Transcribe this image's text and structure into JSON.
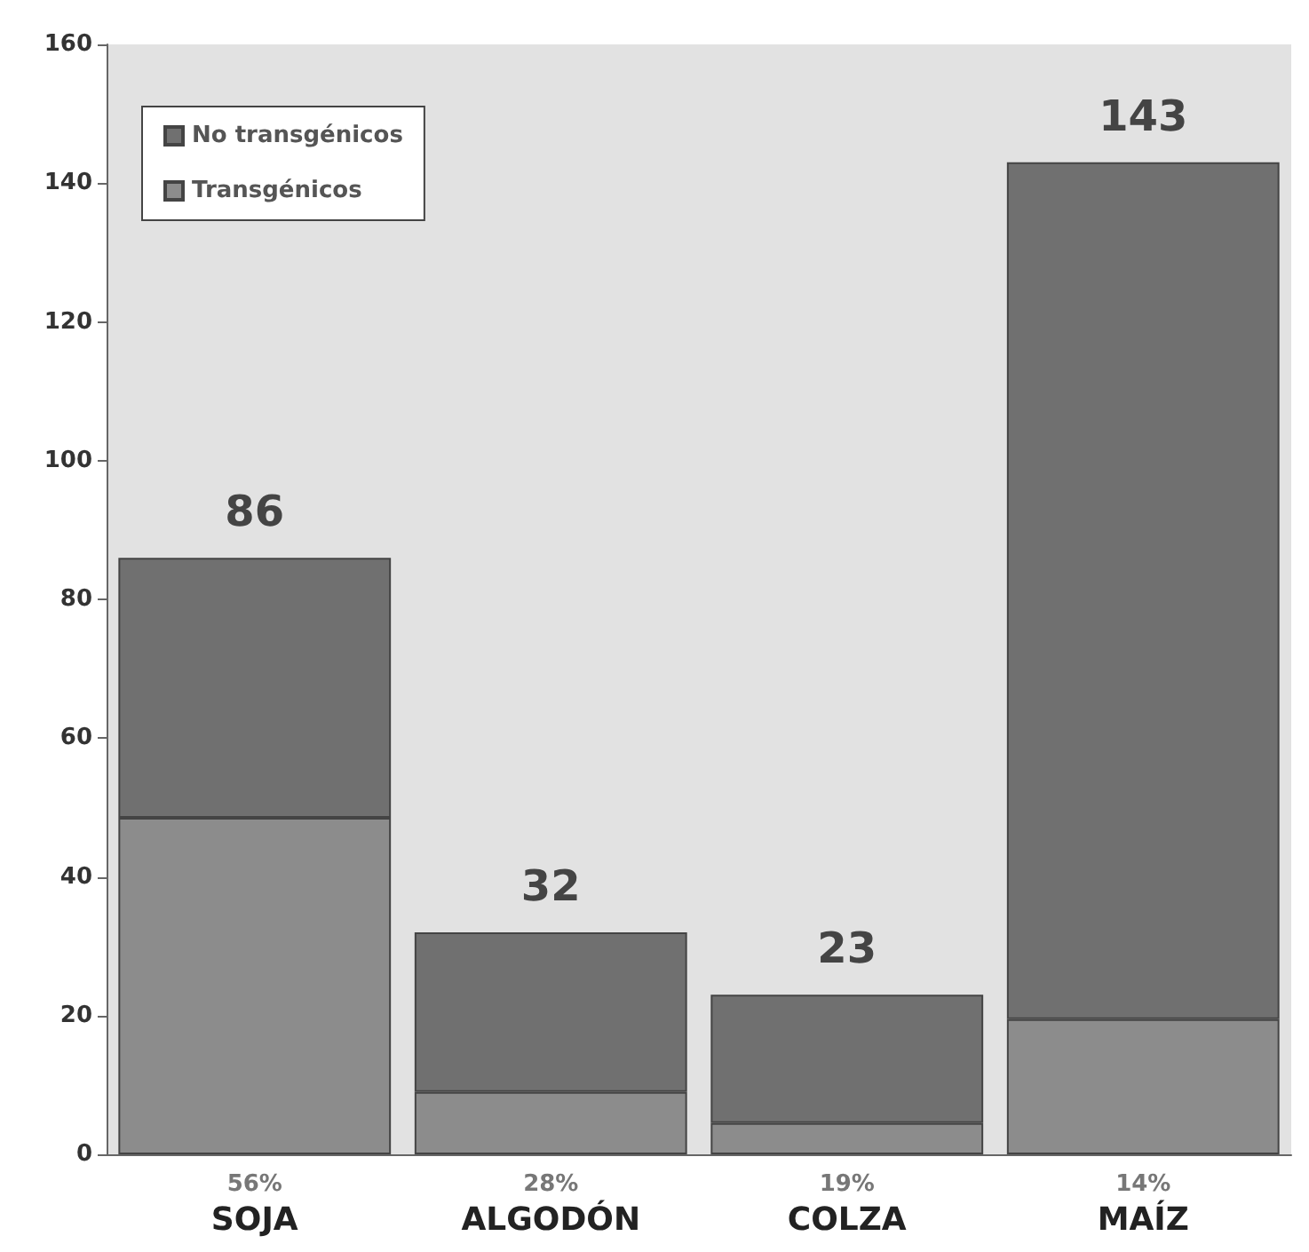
{
  "chart_data": {
    "type": "bar",
    "stacked": true,
    "categories": [
      "56%\nSOJA",
      "28%\nALGODÓN",
      "19%\nCOLZA",
      "14%\nMAÍZ"
    ],
    "series": [
      {
        "name": "Transgénicos",
        "color": "#8c8c8c",
        "values": [
          48.5,
          9,
          4.5,
          19.5
        ]
      },
      {
        "name": "No transgénicos",
        "color": "#707070",
        "values": [
          37.5,
          23,
          18.5,
          123.5
        ]
      }
    ],
    "totals": [
      "86",
      "32",
      "23",
      "143"
    ],
    "ylim": [
      0,
      160
    ],
    "yticks": [
      0,
      20,
      40,
      60,
      80,
      100,
      120,
      140,
      160
    ],
    "grid": false,
    "legend": "top left"
  }
}
